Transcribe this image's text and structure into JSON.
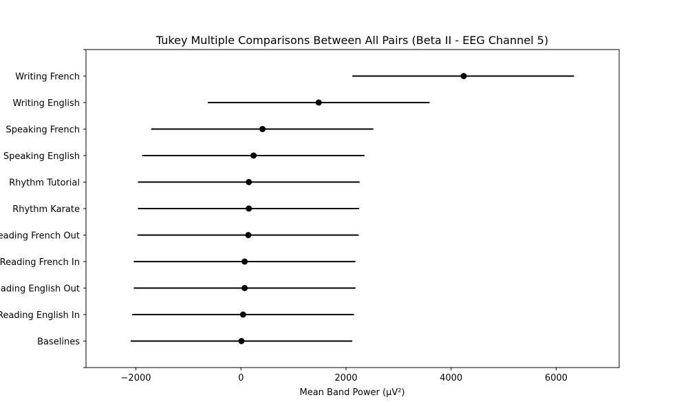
{
  "chart_data": {
    "type": "scatter",
    "title": "Tukey Multiple Comparisons Between All Pairs (Beta II - EEG Channel 5)",
    "xlabel": "Mean Band Power (µV²)",
    "ylabel": "",
    "xlim": [
      -2950,
      7200
    ],
    "xticks": [
      -2000,
      0,
      2000,
      4000,
      6000
    ],
    "xtick_labels": [
      "−2000",
      "0",
      "2000",
      "4000",
      "6000"
    ],
    "grid": false,
    "marker_color": "#000000",
    "groups": [
      {
        "label": "Writing French",
        "mean": 4240,
        "low": 2120,
        "high": 6340
      },
      {
        "label": "Writing English",
        "mean": 1480,
        "low": -630,
        "high": 3590
      },
      {
        "label": "Speaking French",
        "mean": 410,
        "low": -1710,
        "high": 2520
      },
      {
        "label": "Speaking English",
        "mean": 240,
        "low": -1880,
        "high": 2350
      },
      {
        "label": "Rhythm Tutorial",
        "mean": 150,
        "low": -1960,
        "high": 2260
      },
      {
        "label": "Rhythm Karate",
        "mean": 150,
        "low": -1960,
        "high": 2250
      },
      {
        "label": "Reading French Out",
        "mean": 140,
        "low": -1970,
        "high": 2240
      },
      {
        "label": "Reading French In",
        "mean": 70,
        "low": -2040,
        "high": 2180
      },
      {
        "label": "Reading English Out",
        "mean": 70,
        "low": -2040,
        "high": 2180
      },
      {
        "label": "Reading English In",
        "mean": 40,
        "low": -2070,
        "high": 2150
      },
      {
        "label": "Baselines",
        "mean": 10,
        "low": -2100,
        "high": 2120
      }
    ]
  }
}
